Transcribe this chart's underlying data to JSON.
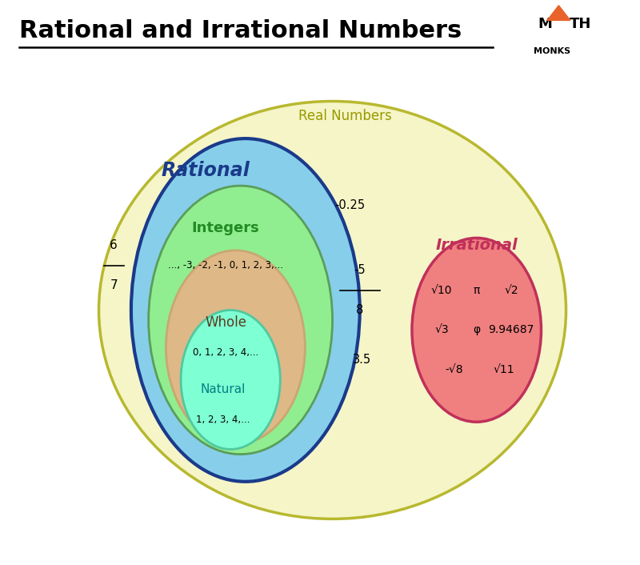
{
  "title": "Rational and Irrational Numbers",
  "title_fontsize": 22,
  "bg_color": "#ffffff",
  "real_label": "Real Numbers",
  "real_label_color": "#999900",
  "real_fc": "#f5f5c8",
  "real_ec": "#b8b830",
  "rational_label": "Rational",
  "rational_label_color": "#1a3a8a",
  "rational_fc": "#87ceeb",
  "rational_ec": "#1a3a8a",
  "integers_label": "Integers",
  "integers_label_color": "#228B22",
  "integers_values": "..., -3, -2, -1, 0, 1, 2, 3,...",
  "integers_fc": "#90ee90",
  "integers_ec": "#5a9e5a",
  "whole_label": "Whole",
  "whole_label_color": "#5c3a1e",
  "whole_values": "0, 1, 2, 3, 4,...",
  "whole_fc": "#deb887",
  "whole_ec": "#c8a870",
  "natural_label": "Natural",
  "natural_label_color": "#008080",
  "natural_values": "1, 2, 3, 4,...",
  "natural_fc": "#7fffd4",
  "natural_ec": "#50c8a0",
  "irrational_label": "Irrational",
  "irrational_label_color": "#c0305a",
  "irrational_fc": "#f08080",
  "irrational_ec": "#c0305a",
  "logo_triangle_color": "#e8622a",
  "logo_text_color": "#000000"
}
